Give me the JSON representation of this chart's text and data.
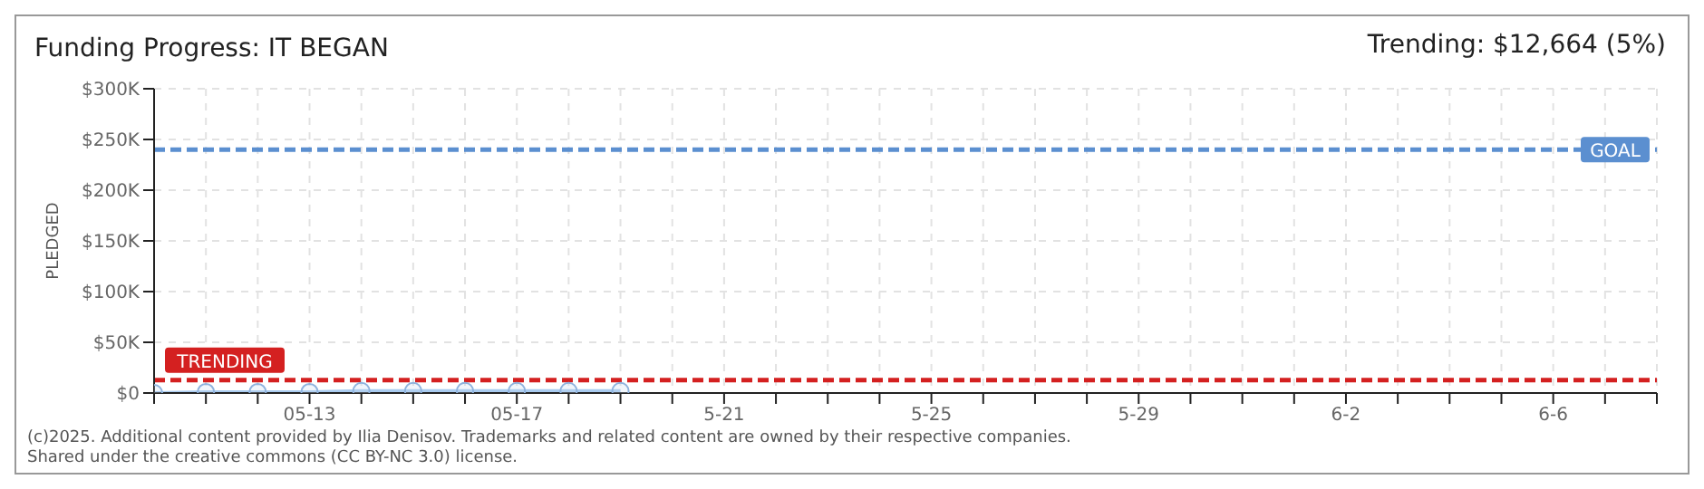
{
  "chart_data": {
    "type": "area",
    "title": "Funding Progress: IT BEGAN",
    "subtitle": "Trending: $12,664 (5%)",
    "ylabel": "PLEDGED",
    "x": [
      "2025-05-10",
      "2025-05-11",
      "2025-05-12",
      "2025-05-13",
      "2025-05-14",
      "2025-05-15",
      "2025-05-16",
      "2025-05-17",
      "2025-05-18",
      "2025-05-19"
    ],
    "series": [
      {
        "color": "#a9cbef",
        "values": [
          0,
          1000,
          1000,
          1000,
          2000,
          2000,
          2000,
          2000,
          2000,
          2000
        ]
      }
    ],
    "xlim": [
      "2025-05-10",
      "2025-06-08"
    ],
    "xticks": [
      {
        "value": "2025-05-10",
        "label": null
      },
      {
        "value": "2025-05-11",
        "label": null
      },
      {
        "value": "2025-05-12",
        "label": null
      },
      {
        "value": "2025-05-13",
        "label": "05-13"
      },
      {
        "value": "2025-05-14",
        "label": null
      },
      {
        "value": "2025-05-15",
        "label": null
      },
      {
        "value": "2025-05-16",
        "label": null
      },
      {
        "value": "2025-05-17",
        "label": "05-17"
      },
      {
        "value": "2025-05-18",
        "label": null
      },
      {
        "value": "2025-05-19",
        "label": null
      },
      {
        "value": "2025-05-20",
        "label": null
      },
      {
        "value": "2025-05-21",
        "label": "5-21"
      },
      {
        "value": "2025-05-22",
        "label": null
      },
      {
        "value": "2025-05-23",
        "label": null
      },
      {
        "value": "2025-05-24",
        "label": null
      },
      {
        "value": "2025-05-25",
        "label": "5-25"
      },
      {
        "value": "2025-05-26",
        "label": null
      },
      {
        "value": "2025-05-27",
        "label": null
      },
      {
        "value": "2025-05-28",
        "label": null
      },
      {
        "value": "2025-05-29",
        "label": "5-29"
      },
      {
        "value": "2025-05-30",
        "label": null
      },
      {
        "value": "2025-05-31",
        "label": null
      },
      {
        "value": "2025-06-01",
        "label": null
      },
      {
        "value": "2025-06-02",
        "label": "6-2"
      },
      {
        "value": "2025-06-03",
        "label": null
      },
      {
        "value": "2025-06-04",
        "label": null
      },
      {
        "value": "2025-06-05",
        "label": null
      },
      {
        "value": "2025-06-06",
        "label": "6-6"
      },
      {
        "value": "2025-06-07",
        "label": null
      },
      {
        "value": "2025-06-08",
        "label": null
      }
    ],
    "ylim": [
      0,
      300000
    ],
    "yticks": [
      {
        "value": 0,
        "label": "$0"
      },
      {
        "value": 50000,
        "label": "$50K"
      },
      {
        "value": 100000,
        "label": "$100K"
      },
      {
        "value": 150000,
        "label": "$150K"
      },
      {
        "value": 200000,
        "label": "$200K"
      },
      {
        "value": 250000,
        "label": "$250K"
      },
      {
        "value": 300000,
        "label": "$300K"
      }
    ],
    "ref_lines": [
      {
        "axis": "y",
        "value": 240000,
        "label": "GOAL",
        "color": "#5b8fd0",
        "line_style": "dashed"
      },
      {
        "axis": "y",
        "value": 12664,
        "label": "TRENDING",
        "color": "#d42020",
        "line_style": "dashed"
      }
    ],
    "grid": true,
    "marker": "circle",
    "legend": false,
    "annotations": [
      "(c)2025. Additional content provided by Ilia Denisov. Trademarks and related content are owned by their respective companies.",
      "Shared under the creative commons (CC BY-NC 3.0) license."
    ]
  }
}
